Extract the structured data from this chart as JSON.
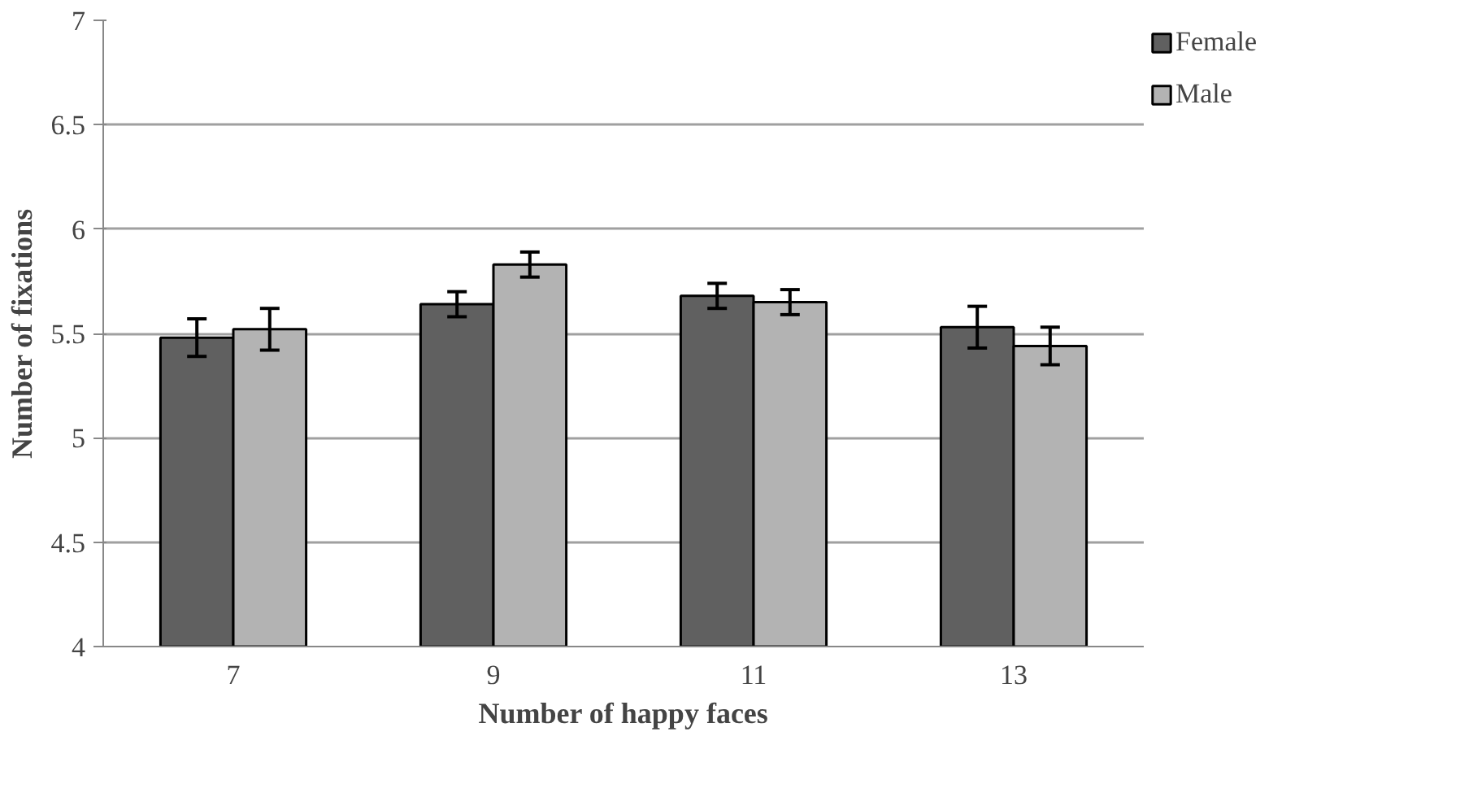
{
  "chart_data": {
    "type": "bar",
    "xlabel": "Number of happy faces",
    "ylabel": "Number of fixations",
    "categories": [
      "7",
      "9",
      "11",
      "13"
    ],
    "series": [
      {
        "name": "Female",
        "color": "#606060",
        "values": [
          5.48,
          5.64,
          5.68,
          5.53
        ],
        "errors": [
          0.09,
          0.06,
          0.06,
          0.1
        ]
      },
      {
        "name": "Male",
        "color": "#b3b3b3",
        "values": [
          5.52,
          5.83,
          5.65,
          5.44
        ],
        "errors": [
          0.1,
          0.06,
          0.06,
          0.09
        ]
      }
    ],
    "ylim": [
      4,
      7
    ],
    "yticks": [
      4,
      4.5,
      5,
      5.5,
      6,
      6.5,
      7
    ],
    "grid": "y",
    "legend": "top right"
  }
}
